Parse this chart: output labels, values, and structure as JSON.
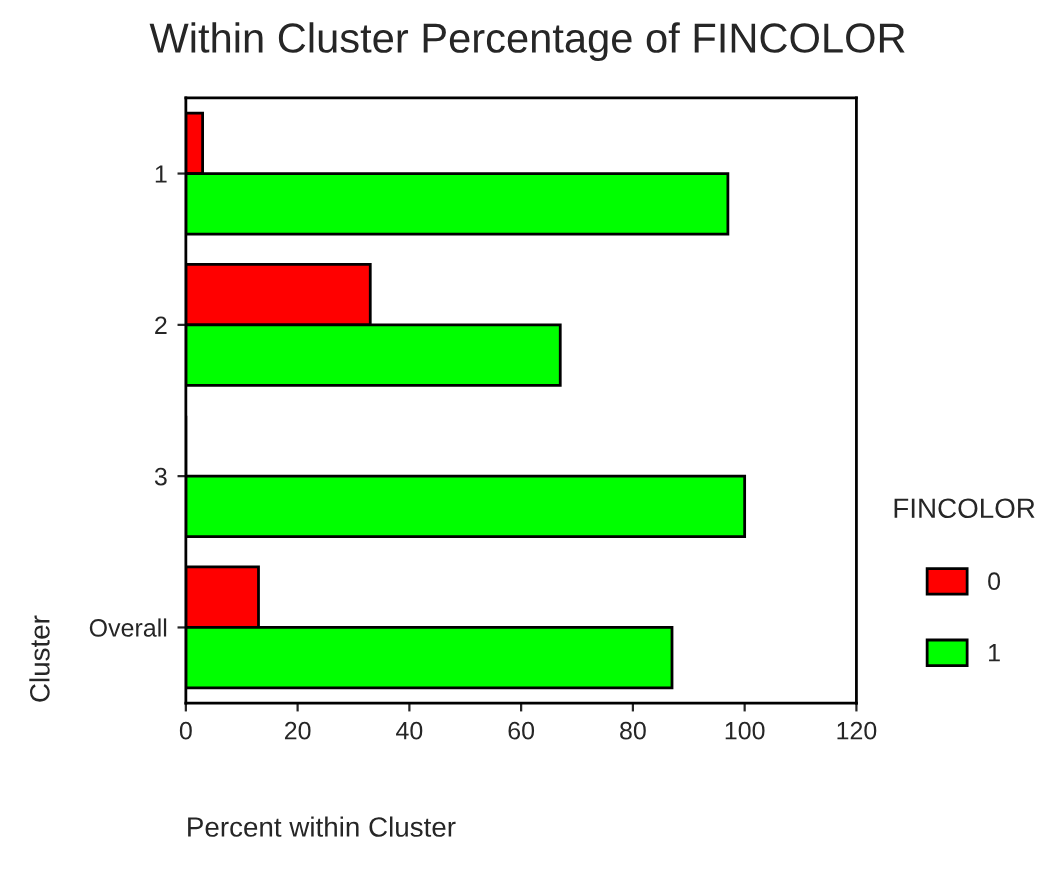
{
  "chart_data": {
    "type": "bar",
    "orientation": "horizontal",
    "title": "Within Cluster Percentage of FINCOLOR",
    "xlabel": "Percent within Cluster",
    "ylabel": "Cluster",
    "legend_title": "FINCOLOR",
    "categories": [
      "1",
      "2",
      "3",
      "Overall"
    ],
    "series": [
      {
        "name": "0",
        "color": "#ff0000",
        "values": [
          3,
          33,
          0,
          13
        ]
      },
      {
        "name": "1",
        "color": "#00ff00",
        "values": [
          97,
          67,
          100,
          87
        ]
      }
    ],
    "xlim": [
      0,
      120
    ],
    "xticks": [
      0,
      20,
      40,
      60,
      80,
      100,
      120
    ],
    "grid": false,
    "legend": "right"
  }
}
